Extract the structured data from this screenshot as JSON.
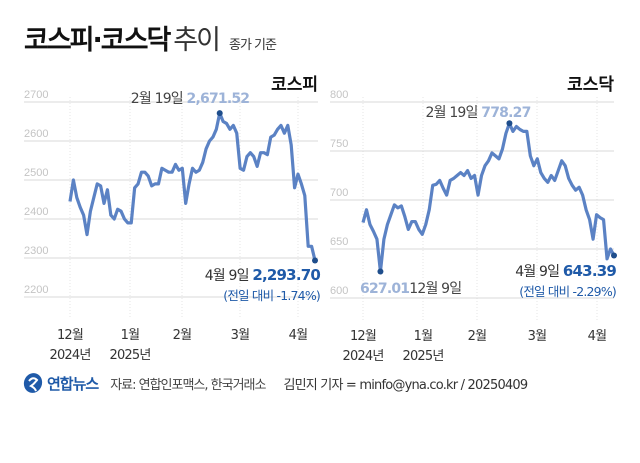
{
  "header": {
    "title_bold": "코스피·코스닥",
    "title_light": "추이",
    "subtitle": "종가 기준"
  },
  "colors": {
    "line": "#5b82c4",
    "endpoint": "#1f4e8c",
    "peak_value": "#9db3d8",
    "end_value": "#1f5aa8",
    "grid": "#d8d8d8",
    "tick_label": "#c4c4c4"
  },
  "chart_data": [
    {
      "type": "line",
      "title": "코스피",
      "xlabel": "",
      "ylabel": "",
      "ylim": [
        2200,
        2700
      ],
      "yticks": [
        2700,
        2600,
        2500,
        2400,
        2300,
        2200
      ],
      "x_tick_labels": [
        {
          "month": "12월",
          "year": "2024년"
        },
        {
          "month": "1월",
          "year": "2025년"
        },
        {
          "month": "2월",
          "year": ""
        },
        {
          "month": "3월",
          "year": ""
        },
        {
          "month": "4월",
          "year": ""
        }
      ],
      "grid": true,
      "values": [
        2445,
        2500,
        2455,
        2430,
        2410,
        2360,
        2420,
        2455,
        2490,
        2485,
        2440,
        2475,
        2410,
        2400,
        2425,
        2420,
        2400,
        2390,
        2390,
        2480,
        2490,
        2520,
        2520,
        2510,
        2485,
        2490,
        2490,
        2530,
        2525,
        2520,
        2520,
        2540,
        2525,
        2530,
        2440,
        2490,
        2530,
        2520,
        2525,
        2545,
        2580,
        2600,
        2610,
        2630,
        2671.52,
        2650,
        2645,
        2630,
        2640,
        2620,
        2530,
        2525,
        2560,
        2570,
        2560,
        2535,
        2570,
        2570,
        2565,
        2610,
        2615,
        2630,
        2640,
        2620,
        2640,
        2590,
        2480,
        2515,
        2490,
        2460,
        2330,
        2330,
        2293.7
      ],
      "annotations": {
        "peak": {
          "date": "2월 19일",
          "value": "2,671.52"
        },
        "end": {
          "date": "4월 9일",
          "value": "2,293.70",
          "change": "(전일 대비 -1.74%)"
        }
      }
    },
    {
      "type": "line",
      "title": "코스닥",
      "xlabel": "",
      "ylabel": "",
      "ylim": [
        600,
        800
      ],
      "yticks": [
        800,
        750,
        700,
        650,
        600
      ],
      "x_tick_labels": [
        {
          "month": "12월",
          "year": "2024년"
        },
        {
          "month": "1월",
          "year": "2025년"
        },
        {
          "month": "2월",
          "year": ""
        },
        {
          "month": "3월",
          "year": ""
        },
        {
          "month": "4월",
          "year": ""
        }
      ],
      "grid": true,
      "values": [
        677,
        690,
        675,
        668,
        660,
        627.01,
        660,
        675,
        685,
        695,
        692,
        694,
        683,
        670,
        678,
        678,
        670,
        665,
        675,
        690,
        715,
        716,
        720,
        712,
        705,
        720,
        722,
        725,
        728,
        725,
        730,
        722,
        725,
        705,
        725,
        735,
        740,
        748,
        745,
        742,
        752,
        768,
        778.27,
        770,
        775,
        772,
        770,
        770,
        745,
        735,
        742,
        728,
        722,
        718,
        725,
        720,
        730,
        740,
        735,
        722,
        715,
        710,
        713,
        705,
        690,
        680,
        660,
        685,
        682,
        680,
        640,
        650,
        643.39
      ],
      "annotations": {
        "peak": {
          "date": "2월 19일",
          "value": "778.27"
        },
        "trough": {
          "date": "12월 9일",
          "value": "627.01"
        },
        "end": {
          "date": "4월 9일",
          "value": "643.39",
          "change": "(전일 대비 -2.29%)"
        }
      }
    }
  ],
  "footer": {
    "logo_text": "연합뉴스",
    "source": "자료: 연합인포맥스, 한국거래소",
    "author": "김민지 기자 = minfo@yna.co.kr / 20250409"
  }
}
